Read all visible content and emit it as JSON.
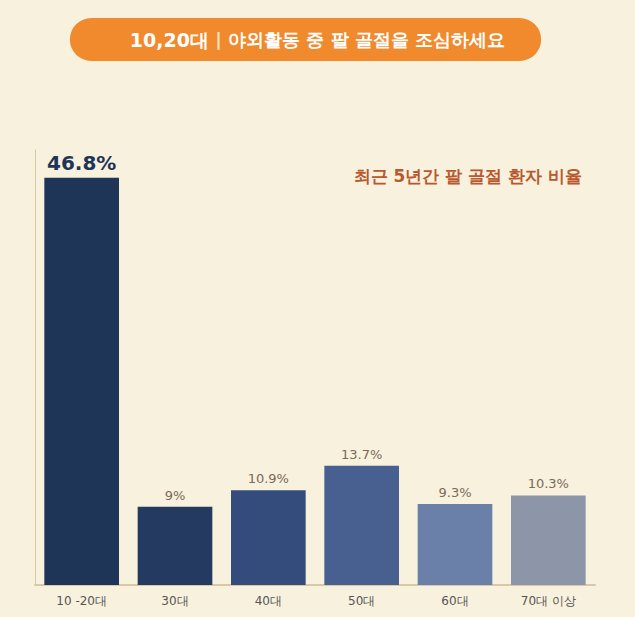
{
  "chart_data": {
    "type": "bar",
    "title": "최근 5년간 팔 골절 환자 비율",
    "subtitle": "10,20대 | 야외활동 중 팔 골절을 조심하세요",
    "categories": [
      "10 -20대",
      "30대",
      "40대",
      "50대",
      "60대",
      "70대 이상"
    ],
    "values": [
      46.8,
      9,
      10.9,
      13.7,
      9.3,
      10.3
    ],
    "value_labels": [
      "46.8%",
      "9%",
      "10.9%",
      "13.7%",
      "9.3%",
      "10.3%"
    ],
    "colors": [
      "#1e3558",
      "#243a60",
      "#344c7c",
      "#48608f",
      "#6b80a8",
      "#8c96a8"
    ],
    "ylim": [
      0,
      50
    ],
    "data_labels": true,
    "tick_labels": "x",
    "grid": false
  }
}
